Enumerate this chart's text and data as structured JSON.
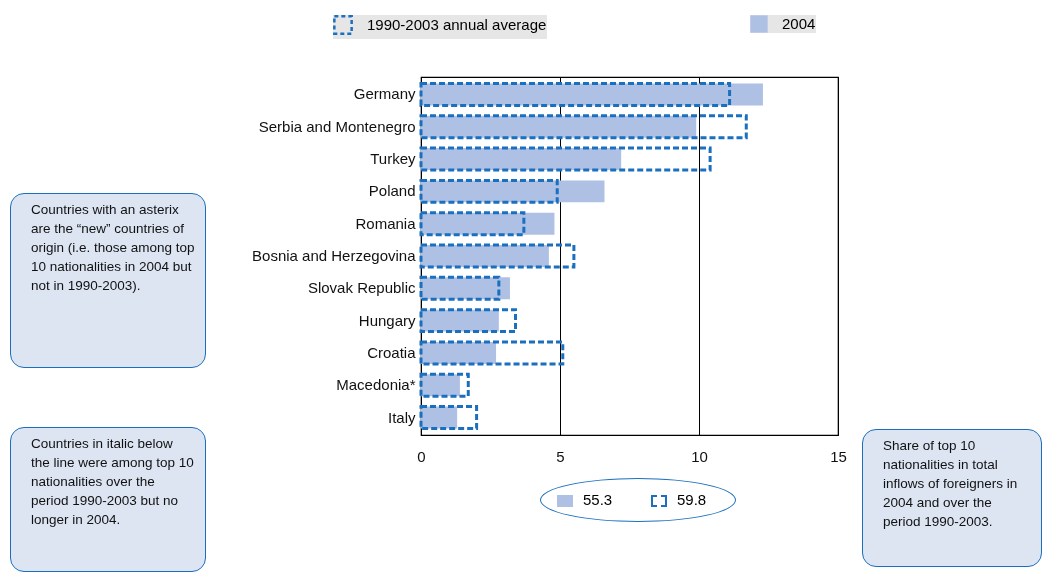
{
  "chart_data": {
    "type": "bar",
    "orientation": "horizontal",
    "categories": [
      "Germany",
      "Serbia and Montenegro",
      "Turkey",
      "Poland",
      "Romania",
      "Bosnia and Herzegovina",
      "Slovak Republic",
      "Hungary",
      "Croatia",
      "Macedonia*",
      "Italy"
    ],
    "series": [
      {
        "name": "1990-2003 annual average",
        "color": "#1a6fbe",
        "line_style": "dashed",
        "values": [
          11.1,
          11.7,
          10.4,
          4.9,
          3.7,
          5.5,
          2.8,
          3.4,
          5.1,
          1.7,
          2.0
        ]
      },
      {
        "name": "2004",
        "color": "#aec0e4",
        "values": [
          12.3,
          9.9,
          7.2,
          6.6,
          4.8,
          4.6,
          3.2,
          2.8,
          2.7,
          1.4,
          1.3
        ]
      }
    ],
    "xlim": [
      0,
      15
    ],
    "xticks": [
      0,
      5,
      10,
      15
    ],
    "grid": "x",
    "legend": "top",
    "annotations": [
      "Countries with an asterix are the “new” countries of origin (i.e. those among top 10 nationalities in 2004 but not in 1990-2003).",
      "Countries in italic below the line were among top 10 nationalities over the period 1990-2003 but no longer in 2004.",
      "55.3",
      "59.8",
      "Share of top 10 nationalities in total inflows of foreigners in 2004 and over the period 1990-2003."
    ]
  }
}
